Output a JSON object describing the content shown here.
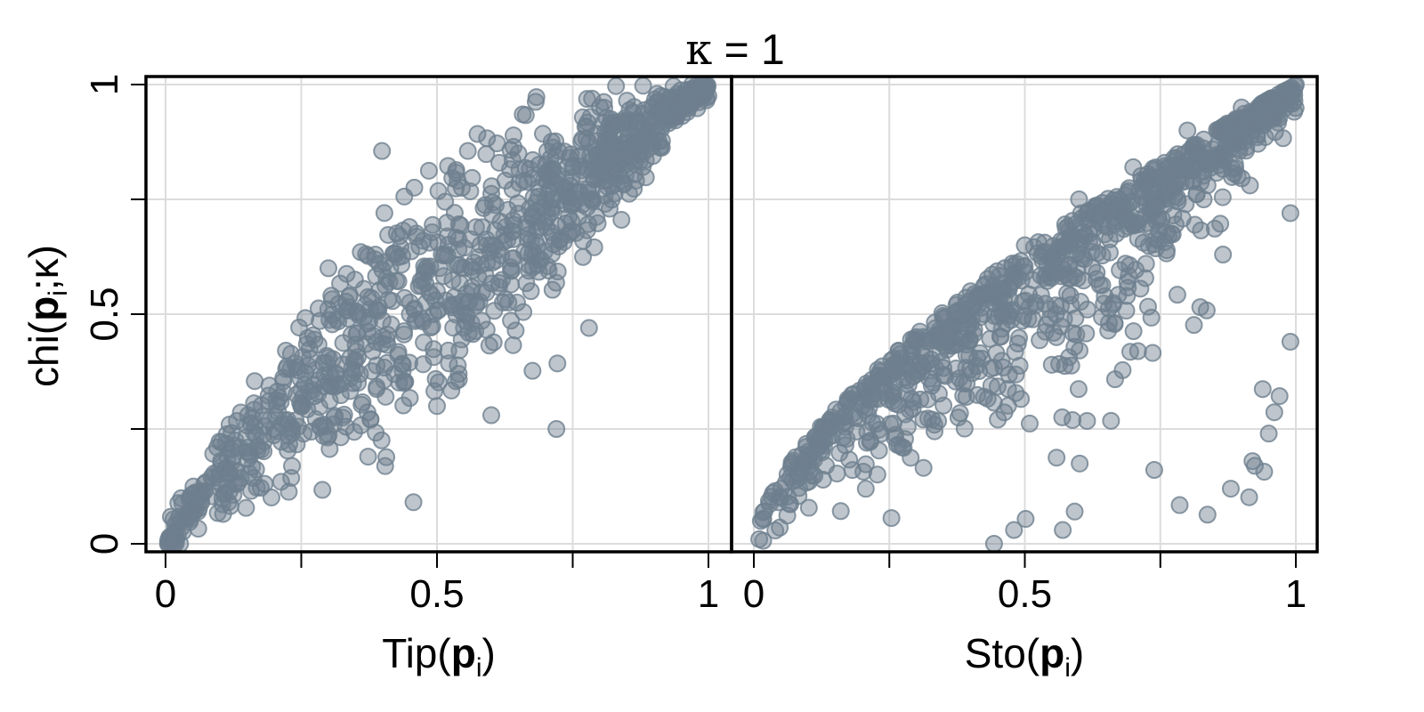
{
  "chart_data": {
    "type": "scatter",
    "title": "κ = 1",
    "ylabel": {
      "prefix": "chi(",
      "bold": "p",
      "sub": "i",
      "rest": ";κ)"
    },
    "marker_color": "#6e7f8f",
    "marker_opacity": 0.45,
    "grid": true,
    "panels": [
      {
        "id": "left",
        "xlabel": {
          "prefix": "Tip(",
          "bold": "p",
          "sub": "i",
          "suffix": ")"
        },
        "xlim": [
          0,
          1
        ],
        "ylim": [
          0,
          1
        ],
        "x_ticks": [
          {
            "v": 0,
            "label": "0"
          },
          {
            "v": 0.25,
            "label": ""
          },
          {
            "v": 0.5,
            "label": "0.5"
          },
          {
            "v": 0.75,
            "label": ""
          },
          {
            "v": 1,
            "label": "1"
          }
        ],
        "shape": "concave-near-diagonal",
        "n_points": 1000,
        "points_sample": [
          [
            0.02,
            0.01
          ],
          [
            0.05,
            0.08
          ],
          [
            0.1,
            0.12
          ],
          [
            0.15,
            0.2
          ],
          [
            0.2,
            0.25
          ],
          [
            0.25,
            0.3
          ],
          [
            0.3,
            0.35
          ],
          [
            0.35,
            0.4
          ],
          [
            0.4,
            0.45
          ],
          [
            0.45,
            0.5
          ],
          [
            0.5,
            0.55
          ],
          [
            0.55,
            0.6
          ],
          [
            0.6,
            0.65
          ],
          [
            0.7,
            0.75
          ],
          [
            0.8,
            0.85
          ],
          [
            0.9,
            0.92
          ],
          [
            0.98,
            0.99
          ],
          [
            0.3,
            0.6
          ],
          [
            0.5,
            0.3
          ],
          [
            0.65,
            0.85
          ],
          [
            0.72,
            0.25
          ],
          [
            0.6,
            0.28
          ],
          [
            0.78,
            0.47
          ],
          [
            0.97,
            1.0
          ]
        ]
      },
      {
        "id": "right",
        "xlabel": {
          "prefix": "Sto(",
          "bold": "p",
          "sub": "i",
          "suffix": ")"
        },
        "xlim": [
          0,
          1
        ],
        "ylim": [
          0,
          1
        ],
        "x_ticks": [
          {
            "v": 0,
            "label": "0"
          },
          {
            "v": 0.25,
            "label": ""
          },
          {
            "v": 0.5,
            "label": "0.5"
          },
          {
            "v": 0.75,
            "label": ""
          },
          {
            "v": 1,
            "label": "1"
          }
        ],
        "shape": "concave-wide-spread",
        "n_points": 1000,
        "points_sample": [
          [
            0.01,
            0.01
          ],
          [
            0.05,
            0.1
          ],
          [
            0.1,
            0.2
          ],
          [
            0.2,
            0.3
          ],
          [
            0.3,
            0.45
          ],
          [
            0.4,
            0.55
          ],
          [
            0.5,
            0.65
          ],
          [
            0.6,
            0.75
          ],
          [
            0.7,
            0.82
          ],
          [
            0.8,
            0.9
          ],
          [
            0.9,
            0.95
          ],
          [
            1.0,
            1.0
          ],
          [
            0.48,
            0.03
          ],
          [
            0.57,
            0.03
          ],
          [
            0.88,
            0.12
          ],
          [
            0.92,
            0.18
          ],
          [
            0.99,
            0.44
          ],
          [
            0.95,
            0.24
          ],
          [
            0.83,
            0.75
          ],
          [
            0.99,
            0.72
          ]
        ]
      }
    ],
    "y_ticks": [
      {
        "v": 0,
        "label": "0"
      },
      {
        "v": 0.25,
        "label": ""
      },
      {
        "v": 0.5,
        "label": "0.5"
      },
      {
        "v": 0.75,
        "label": ""
      },
      {
        "v": 1,
        "label": "1"
      }
    ]
  }
}
